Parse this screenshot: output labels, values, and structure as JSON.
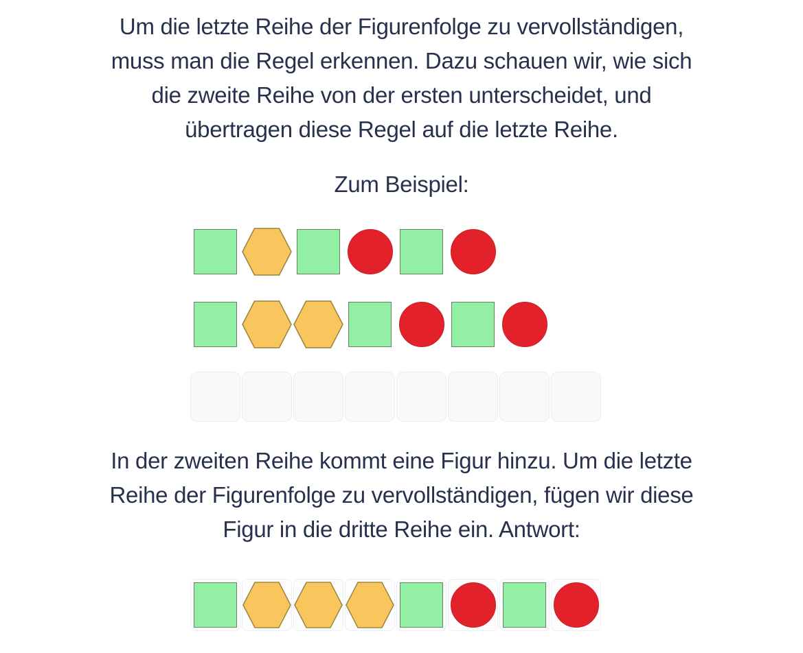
{
  "colors": {
    "text_color": "#27314e",
    "square_fill": "#93efa4",
    "square_border": "#6b8069",
    "hex_fill": "#f9c55d",
    "hex_border": "#97823f",
    "circle_fill": "#e3212a",
    "circle_border": "#c42128",
    "cell_bg": "#f8f9fb",
    "cell_border": "#ebedf2",
    "answer_cell_bg": "#fdfdfe",
    "answer_cell_border": "#edeff4",
    "page_bg": "#ffffff"
  },
  "intro": {
    "lines": [
      "Um die letzte Reihe der Figurenfolge zu vervollständigen,",
      "muss man die Regel erkennen. Dazu schauen wir, wie sich",
      "die zweite Reihe von der ersten unterscheidet, und",
      "übertragen diese Regel auf die letzte Reihe."
    ]
  },
  "example": {
    "label": "Zum Beispiel:"
  },
  "figures": {
    "row1": [
      "square",
      "hexagon",
      "square",
      "circle",
      "square",
      "circle"
    ],
    "row2": [
      "square",
      "hexagon",
      "hexagon",
      "square",
      "circle",
      "square",
      "circle"
    ],
    "empty_cells": 8,
    "answer": [
      "square",
      "hexagon",
      "hexagon",
      "hexagon",
      "square",
      "circle",
      "square",
      "circle"
    ]
  },
  "explanation": {
    "lines": [
      "In der zweiten Reihe kommt eine Figur hinzu. Um die letzte",
      "Reihe der Figurenfolge zu vervollständigen, fügen wir diese",
      "Figur in die dritte Reihe ein. Antwort:"
    ]
  }
}
